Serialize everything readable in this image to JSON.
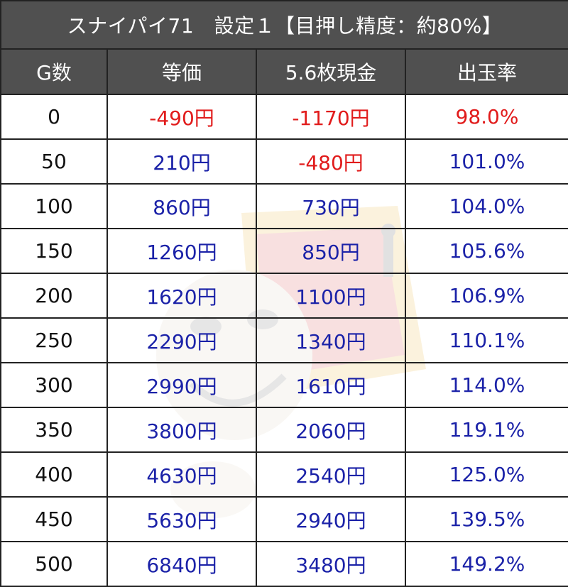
{
  "title": "スナイパイ71　設定１【目押し精度：約80%】",
  "headers": [
    "G数",
    "等価",
    "5.6枚現金",
    "出玉率"
  ],
  "colors": {
    "header_bg": "#505050",
    "negative": "#e11b1b",
    "positive": "#1b22a8"
  },
  "rows": [
    {
      "g": "0",
      "equal": "-490円",
      "cash": "-1170円",
      "rate": "98.0%"
    },
    {
      "g": "50",
      "equal": "210円",
      "cash": "-480円",
      "rate": "101.0%"
    },
    {
      "g": "100",
      "equal": "860円",
      "cash": "730円",
      "rate": "104.0%"
    },
    {
      "g": "150",
      "equal": "1260円",
      "cash": "850円",
      "rate": "105.6%"
    },
    {
      "g": "200",
      "equal": "1620円",
      "cash": "1100円",
      "rate": "106.9%"
    },
    {
      "g": "250",
      "equal": "2290円",
      "cash": "1340円",
      "rate": "110.1%"
    },
    {
      "g": "300",
      "equal": "2990円",
      "cash": "1610円",
      "rate": "114.0%"
    },
    {
      "g": "350",
      "equal": "3800円",
      "cash": "2060円",
      "rate": "119.1%"
    },
    {
      "g": "400",
      "equal": "4630円",
      "cash": "2540円",
      "rate": "125.0%"
    },
    {
      "g": "450",
      "equal": "5630円",
      "cash": "2940円",
      "rate": "139.5%"
    },
    {
      "g": "500",
      "equal": "6840円",
      "cash": "3480円",
      "rate": "149.2%"
    }
  ]
}
